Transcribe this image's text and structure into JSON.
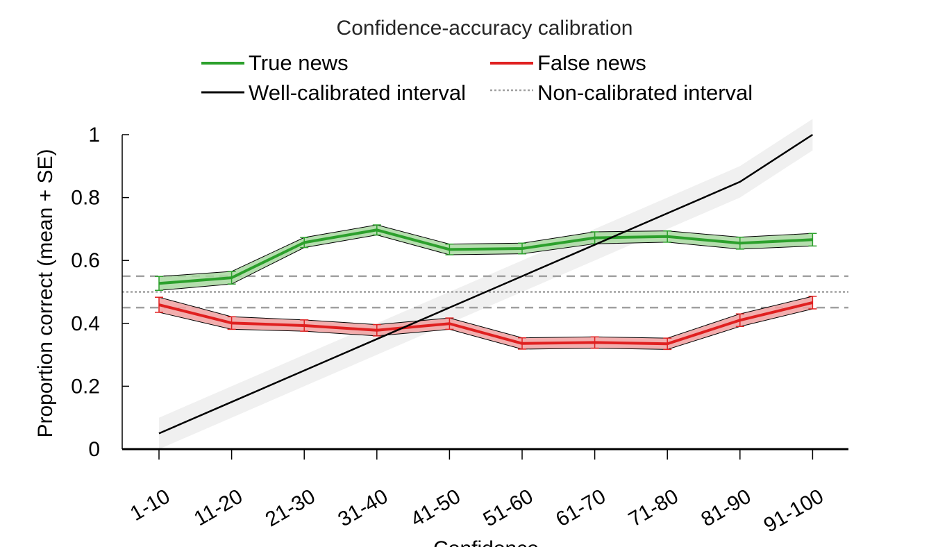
{
  "chart_data": {
    "type": "line",
    "title": "Confidence-accuracy calibration",
    "xlabel": "Confidence",
    "ylabel": "Proportion correct (mean + SE)",
    "categories": [
      "1-10",
      "11-20",
      "21-30",
      "31-40",
      "41-50",
      "51-60",
      "61-70",
      "71-80",
      "81-90",
      "91-100"
    ],
    "ylim": [
      0,
      1
    ],
    "yticks": [
      "0",
      "0.2",
      "0.4",
      "0.6",
      "0.8",
      "1"
    ],
    "ytick_values": [
      0,
      0.2,
      0.4,
      0.6,
      0.8,
      1
    ],
    "grid": false,
    "legend_position": "top",
    "series": [
      {
        "name": "True news",
        "color": "#2ca02c",
        "fill": "#a8d8a0",
        "values": [
          0.527,
          0.545,
          0.657,
          0.697,
          0.635,
          0.638,
          0.672,
          0.676,
          0.655,
          0.666
        ],
        "se": [
          0.022,
          0.02,
          0.016,
          0.016,
          0.017,
          0.017,
          0.019,
          0.018,
          0.019,
          0.02
        ]
      },
      {
        "name": "False news",
        "color": "#e02020",
        "fill": "#f0a0a0",
        "values": [
          0.459,
          0.401,
          0.393,
          0.378,
          0.399,
          0.336,
          0.339,
          0.335,
          0.41,
          0.466
        ],
        "se": [
          0.024,
          0.02,
          0.018,
          0.018,
          0.018,
          0.018,
          0.018,
          0.018,
          0.02,
          0.02
        ]
      }
    ],
    "reference_lines": {
      "well_calibrated": {
        "name": "Well-calibrated interval",
        "color": "#000000",
        "values": [
          0.05,
          0.15,
          0.25,
          0.35,
          0.45,
          0.55,
          0.65,
          0.75,
          0.85,
          1.0
        ],
        "band_halfwidth": 0.05,
        "band_color": "#f0f0f0"
      },
      "non_calibrated": {
        "name": "Non-calibrated interval",
        "color": "#a0a0a0",
        "center": 0.5,
        "lower": 0.45,
        "upper": 0.55
      }
    }
  }
}
